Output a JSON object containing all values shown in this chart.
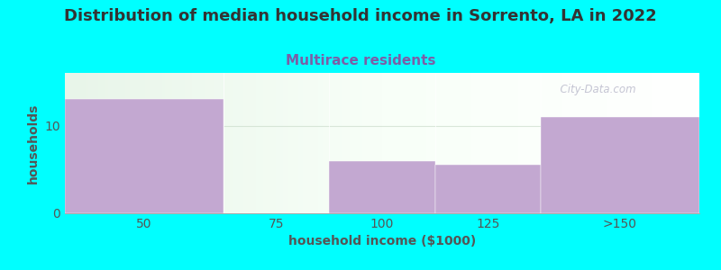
{
  "title": "Distribution of median household income in Sorrento, LA in 2022",
  "subtitle": "Multirace residents",
  "xlabel": "household income ($1000)",
  "ylabel": "households",
  "background_color": "#00FFFF",
  "bar_color": "#C3A8D1",
  "bar_edge_color": "#C3A8D1",
  "categories": [
    "50",
    "75",
    "100",
    "125",
    ">150"
  ],
  "values": [
    13,
    0,
    6,
    5.5,
    11
  ],
  "ylim": [
    0,
    16
  ],
  "yticks": [
    0,
    10
  ],
  "title_fontsize": 13,
  "subtitle_fontsize": 11,
  "axis_label_fontsize": 10,
  "tick_fontsize": 10,
  "title_color": "#333333",
  "subtitle_color": "#7B5EA7",
  "axis_label_color": "#555555",
  "tick_color": "#555555",
  "watermark_text": "  City-Data.com",
  "watermark_color": "#bbbbcc",
  "grid_color": "#ccddcc",
  "grid_alpha": 0.7
}
